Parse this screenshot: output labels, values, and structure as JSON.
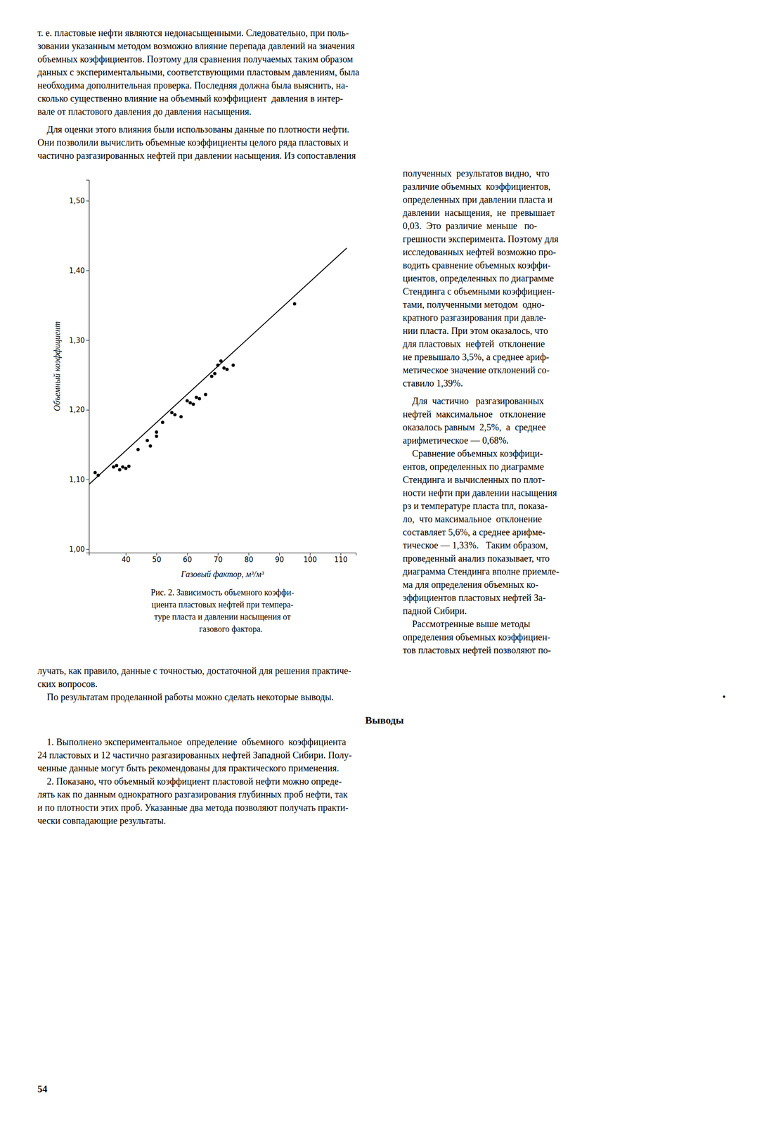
{
  "chart_data": {
    "type": "scatter",
    "xlabel": "Газовый фактор, м³/м³",
    "ylabel": "Объемный коэффициент",
    "xlim": [
      28,
      115
    ],
    "ylim": [
      0.995,
      1.53
    ],
    "xticks": [
      40,
      50,
      60,
      70,
      80,
      90,
      100,
      110
    ],
    "yticks": [
      {
        "value": 1.0,
        "label": "1,00"
      },
      {
        "value": 1.1,
        "label": "1,10"
      },
      {
        "value": 1.2,
        "label": "1,20"
      },
      {
        "value": 1.3,
        "label": "1,30"
      },
      {
        "value": 1.4,
        "label": "1,40"
      },
      {
        "value": 1.5,
        "label": "1,50"
      }
    ],
    "series": [
      {
        "type": "scatter",
        "color": "#000000",
        "x": [
          30,
          31,
          36,
          37,
          38,
          39,
          40,
          41,
          44,
          47,
          48,
          50,
          50,
          52,
          55,
          56,
          58,
          60,
          61,
          62,
          63,
          64,
          66,
          68,
          69,
          70,
          71,
          72,
          73,
          75,
          95
        ],
        "values": [
          1.11,
          1.106,
          1.118,
          1.12,
          1.114,
          1.118,
          1.116,
          1.119,
          1.143,
          1.156,
          1.148,
          1.168,
          1.162,
          1.182,
          1.196,
          1.193,
          1.19,
          1.213,
          1.21,
          1.208,
          1.218,
          1.216,
          1.222,
          1.248,
          1.252,
          1.264,
          1.27,
          1.26,
          1.258,
          1.264,
          1.352
        ]
      },
      {
        "type": "line",
        "color": "#000000",
        "x": [
          28,
          112
        ],
        "values": [
          1.093,
          1.432
        ]
      }
    ]
  },
  "page": {
    "text_top": [
      "т. е. пластовые нефти являются недонасыщенными. Следовательно, при поль-",
      "зовании указанным методом возможно влияние перепада давлений на значения",
      "объемных коэффициентов. Поэтому для сравнения получаемых таким образом",
      "данных с экспериментальными, соответствующими пластовым давлениям, была",
      "необходима дополнительная проверка. Последняя должна была выяснить, на-",
      "сколько существенно влияние на объемный коэффициент  давления в интер-",
      "вале от пластового давления до давления насыщения."
    ],
    "text_indent": [
      "    Для оценки этого влияния были использованы данные по плотности нефти.",
      "Они позволили вычислить объемные коэффициенты целого ряда пластовых и",
      "частично разгазированных нефтей при давлении насыщения. Из сопоставления"
    ],
    "text_right": [
      "полученных  результатов видно,  что",
      "различие объемных  коэффициентов,",
      "определенных при давлении пласта и",
      "давлении  насыщения,  не  превышает",
      "0,03.  Это  различие  меньше   по-",
      "грешности эксперимента. Поэтому для",
      "исследованных нефтей возможно про-",
      "водить сравнение объемных коэффи-",
      "циентов, определенных по диаграмме",
      "Стендинга с объемными коэффициен-",
      "тами, полученными методом  одно-",
      "кратного разгазирования при давле-",
      "нии пласта. При этом оказалось, что",
      "для пластовых  нефтей  отклонение",
      "не превышало 3,5%, а среднее ариф-",
      "метическое значение отклонений со-",
      "ставило 1,39%."
    ],
    "text_right2": [
      "    Для  частично   разгазированных",
      "нефтей  максимальное   отклонение",
      "оказалось равным  2,5%,  а  среднее",
      "арифметическое — 0,68%.",
      "    Сравнение объемных коэффици-",
      "ентов, определенных по диаграмме",
      "Стендинга и вычисленных по плот-",
      "ности нефти при давлении насыщения",
      "рз и температуре пласта tпл, показа-",
      "ло,  что максимальное  отклонение",
      "составляет 5,6%, а среднее арифме-",
      "тическое — 1,33%.   Таким образом,",
      "проведенный анализ показывает, что",
      "диаграмма Стендинга вполне приемле-",
      "ма для определения объемных ко-",
      "эффициентов пластовых нефтей За-",
      "падной Сибири.",
      "    Рассмотренные выше методы",
      "определения объемных коэффициен-",
      "тов пластовых нефтей позволяют по-"
    ],
    "caption": [
      "Рис. 2. Зависимость объемного коэффи-",
      "циента пластовых нефтей при темпера-",
      "туре пласта и давлении насыщения от",
      "        газового фактора."
    ],
    "text_bottom": [
      "лучать, как правило, данные с точностью, достаточной для решения практиче-",
      "ских вопросов.",
      "    По результатам проделанной работы можно сделать некоторые выводы."
    ],
    "decoration": "•",
    "section_title": "Выводы",
    "conclusions": [
      "    1. Выполнено экспериментальное  определение  объемного  коэффициента",
      "24 пластовых и 12 частично разгазированных нефтей Западной Сибири. Полу-",
      "ченные данные могут быть рекомендованы для практического применения.",
      "    2. Показано, что объемный коэффициент пластовой нефти можно опреде-",
      "лять как по данным однократного разгазирования глубинных проб нефти, так",
      "и по плотности этих проб. Указанные два метода позволяют получать практи-",
      "чески совпадающие результаты."
    ],
    "page_number": "54"
  }
}
